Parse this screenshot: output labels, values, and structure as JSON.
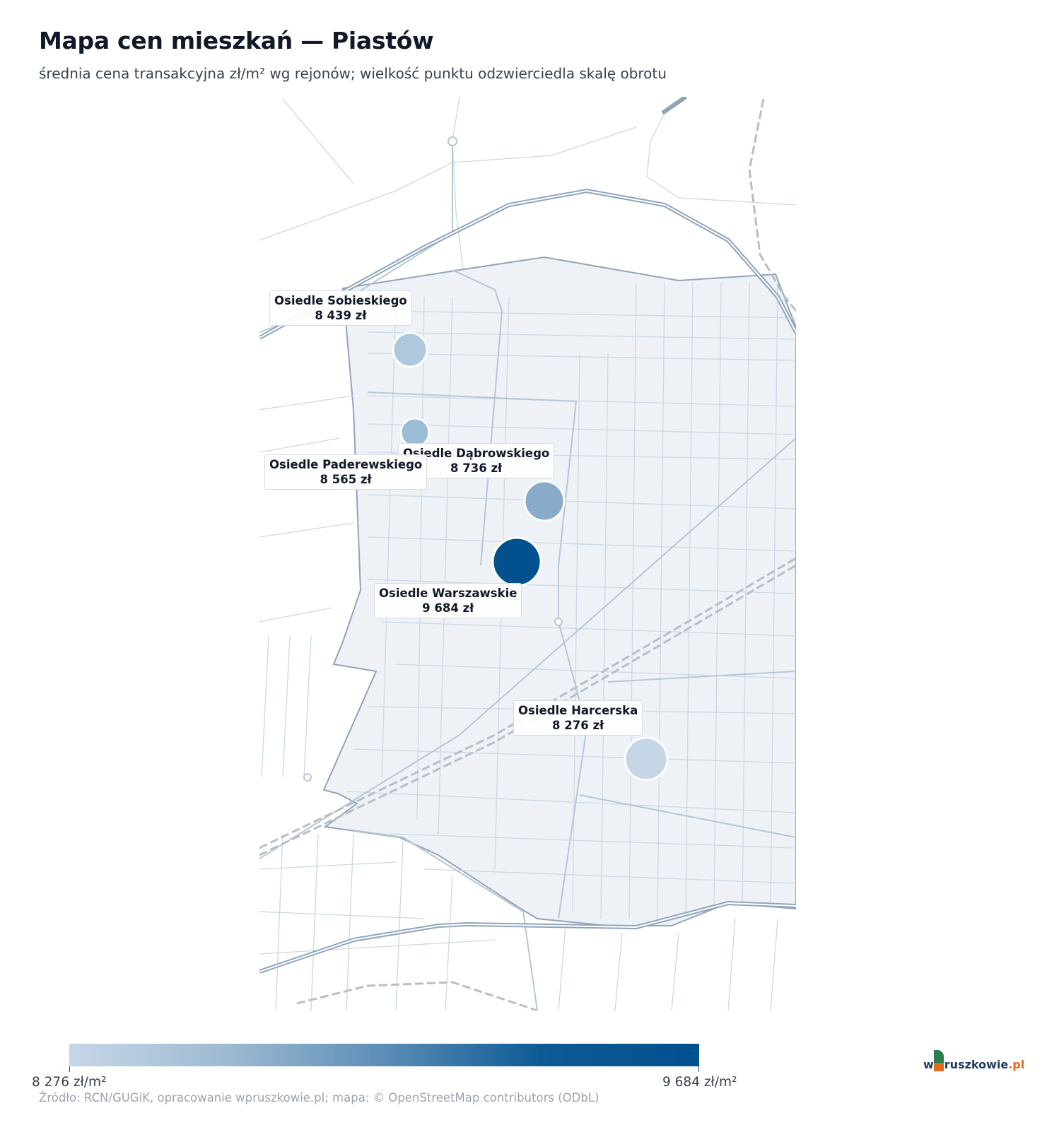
{
  "header": {
    "title": "Mapa cen mieszkań — Piastów",
    "subtitle": "średnia cena transakcyjna zł/m² wg rejonów; wielkość punktu odzwierciedla skalę obrotu"
  },
  "map": {
    "basemap": "OpenStreetMap streets, gray-blue roads on white",
    "boundary_fill": "#eef2f7",
    "boundary_stroke": "#94a3b8",
    "districts": [
      {
        "name": "Osiedle Sobieskiego",
        "price_label": "8 439 zł",
        "price": 8439,
        "color": "#aec8de",
        "size_rank": "medium"
      },
      {
        "name": "Osiedle Paderewskiego",
        "price_label": "8 565 zł",
        "price": 8565,
        "color": "#9bbcd6",
        "size_rank": "small"
      },
      {
        "name": "Osiedle Dąbrowskiego",
        "price_label": "8 736 zł",
        "price": 8736,
        "color": "#87abc9",
        "size_rank": "large"
      },
      {
        "name": "Osiedle Warszawskie",
        "price_label": "9 684 zł",
        "price": 9684,
        "color": "#02508e",
        "size_rank": "largest"
      },
      {
        "name": "Osiedle Harcerska",
        "price_label": "8 276 zł",
        "price": 8276,
        "color": "#c5d7e7",
        "size_rank": "large"
      }
    ]
  },
  "scale": {
    "min_label": "8 276 zł/m²",
    "max_label": "9 684 zł/m²",
    "min": 8276,
    "max": 9684,
    "color_min": "#c5d7e7",
    "color_max": "#02508e"
  },
  "footer": {
    "source": "Źródło: RCN/GUGiK, opracowanie wpruszkowie.pl; mapa: © OpenStreetMap contributors (ODbL)",
    "logo_w": "w",
    "logo_rest": "ruszkowie",
    "logo_tld": ".pl"
  }
}
